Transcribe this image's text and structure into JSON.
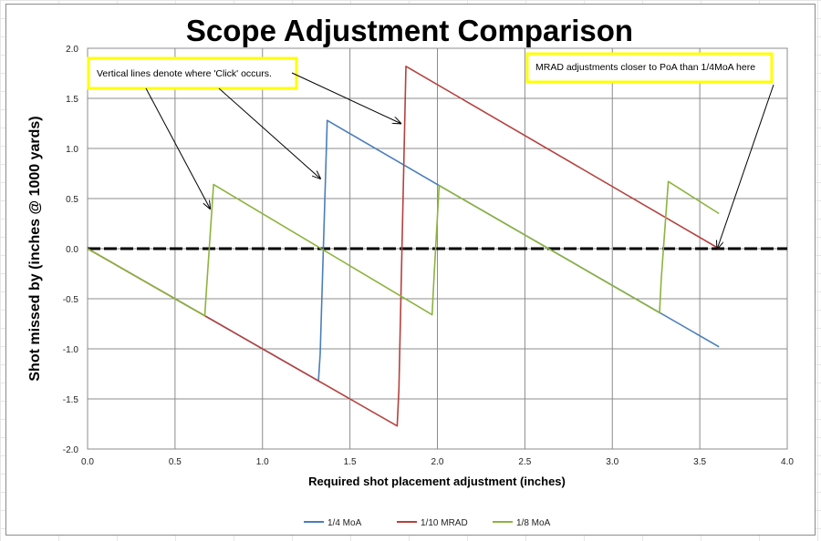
{
  "chart_data": {
    "type": "line",
    "title": "Scope Adjustment Comparison",
    "xlabel": "Required shot placement adjustment (inches)",
    "ylabel": "Shot missed by (inches @ 1000 yards)",
    "xlim": [
      0.0,
      4.0
    ],
    "ylim": [
      -2.0,
      2.0
    ],
    "x_ticks": [
      "0.0",
      "0.5",
      "1.0",
      "1.5",
      "2.0",
      "2.5",
      "3.0",
      "3.5",
      "4.0"
    ],
    "y_ticks": [
      "2.0",
      "1.5",
      "1.0",
      "0.5",
      "0.0",
      "-0.5",
      "-1.0",
      "-1.5",
      "-2.0"
    ],
    "grid": true,
    "legend_position": "bottom",
    "zero_line": 0.0,
    "series": [
      {
        "name": "1/4 MoA",
        "color": "#4a7ebb",
        "x": [
          0.0,
          1.32,
          1.33,
          1.37,
          2.0,
          3.61
        ],
        "y": [
          0.0,
          -1.32,
          -1.05,
          1.28,
          0.64,
          -0.98
        ]
      },
      {
        "name": "1/10 MRAD",
        "color": "#b5413e",
        "x": [
          0.0,
          1.77,
          1.78,
          1.82,
          3.61
        ],
        "y": [
          0.0,
          -1.77,
          -1.4,
          1.82,
          0.0
        ]
      },
      {
        "name": "1/8 MoA",
        "color": "#8db33e",
        "x": [
          0.0,
          0.67,
          0.68,
          0.72,
          1.97,
          1.98,
          2.01,
          3.27,
          3.28,
          3.32,
          3.61
        ],
        "y": [
          0.0,
          -0.67,
          -0.4,
          0.64,
          -0.66,
          -0.3,
          0.63,
          -0.64,
          -0.3,
          0.67,
          0.35
        ]
      }
    ],
    "annotations": [
      {
        "text": "Vertical lines denote where 'Click' occurs.",
        "arrows_to_x": [
          [
            0.7,
            0.4
          ],
          [
            1.33,
            0.7
          ],
          [
            1.79,
            1.25
          ]
        ]
      },
      {
        "text": "MRAD adjustments closer to PoA than 1/4MoA here",
        "arrows_to_x": [
          [
            3.6,
            0.0
          ]
        ]
      }
    ]
  }
}
